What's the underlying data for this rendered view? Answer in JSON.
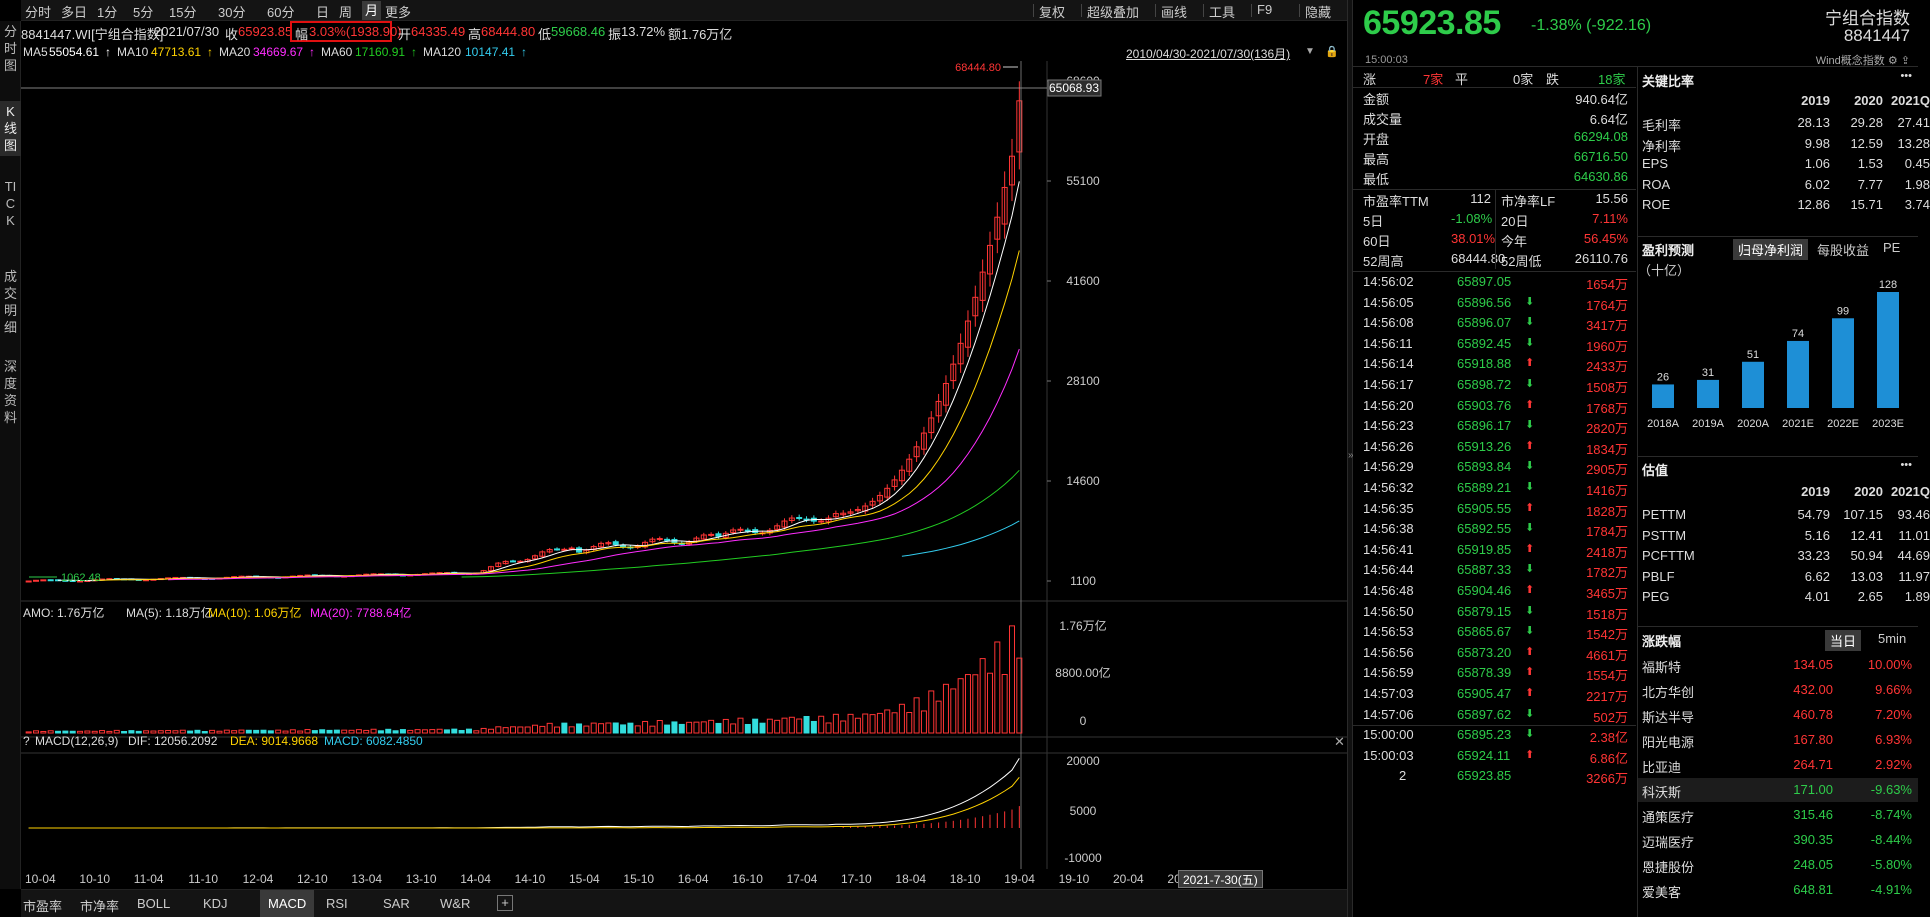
{
  "toolbar": {
    "periods": [
      "分时",
      "多日",
      "1分",
      "5分",
      "15分",
      "30分",
      "60分",
      "日",
      "周",
      "月",
      "更多"
    ],
    "active": "月",
    "right": [
      "复权",
      "超级叠加",
      "画线",
      "工具",
      "F9",
      "隐藏"
    ]
  },
  "left_tabs": [
    "分时图",
    "K线图",
    "TICK",
    "成交明细",
    "深度资料"
  ],
  "info": {
    "code": "8841447.WI[宁组合指数]",
    "date": "2021/07/30",
    "close_label": "收",
    "close": "65923.85",
    "range_label": "幅",
    "range": "3.03%(1938.90)",
    "open_label": "开",
    "open": "64335.49",
    "high_label": "高",
    "high": "68444.80",
    "low_label": "低",
    "low": "59668.46",
    "amp_label": "振",
    "amp": "13.72%",
    "amount_label": "额",
    "amount": "1.76万亿"
  },
  "ma": [
    {
      "label": "MA5",
      "value": "55054.61",
      "color": "#ffffff"
    },
    {
      "label": "MA10",
      "value": "47713.61",
      "color": "#ffd200"
    },
    {
      "label": "MA20",
      "value": "34669.67",
      "color": "#ff2dff"
    },
    {
      "label": "MA60",
      "value": "17160.91",
      "color": "#22cc22"
    },
    {
      "label": "MA120",
      "value": "10147.41",
      "color": "#33ccee"
    }
  ],
  "range_text": "2010/04/30-2021/07/30(136月)",
  "price_axis": {
    "ticks": [
      "68600",
      "55100",
      "41600",
      "28100",
      "14600",
      "1100"
    ],
    "cursor": "65068.93",
    "high_marker": "68444.80",
    "low_marker": "1062.48"
  },
  "volume": {
    "title": "AMO: 1.76万亿",
    "ma5": "MA(5): 1.18万亿",
    "ma10": "MA(10): 1.06万亿",
    "ma20": "MA(20): 7788.64亿",
    "ticks": [
      "1.76万亿",
      "8800.00亿",
      "0"
    ]
  },
  "macd": {
    "help": "?",
    "title": "MACD(12,26,9)",
    "dif": "DIF: 12056.2092",
    "dea": "DEA: 9014.9668",
    "macd": "MACD: 6082.4850",
    "ticks": [
      "20000",
      "5000",
      "-10000"
    ]
  },
  "dates": [
    "10-04",
    "10-10",
    "11-04",
    "11-10",
    "12-04",
    "12-10",
    "13-04",
    "13-10",
    "14-04",
    "14-10",
    "15-04",
    "15-10",
    "16-04",
    "16-10",
    "17-04",
    "17-10",
    "18-04",
    "18-10",
    "19-04",
    "19-10",
    "20-04",
    "20"
  ],
  "date_cursor": "2021-7-30(五)",
  "bottom_tabs": [
    "市盈率",
    "市净率",
    "BOLL",
    "KDJ",
    "MACD",
    "RSI",
    "SAR",
    "W&R",
    "+"
  ],
  "bottom_active": "MACD",
  "quote": {
    "price": "65923.85",
    "change": "-1.38% (-922.16)",
    "name": "宁组合指数",
    "code": "8841447",
    "time": "15:00:03",
    "wind": "Wind概念指数"
  },
  "stats": {
    "up_label": "涨",
    "up": "7家",
    "flat_label": "平",
    "flat": "0家",
    "down_label": "跌",
    "down": "18家",
    "rows": [
      {
        "k": "金额",
        "v": "940.64亿",
        "c": "white"
      },
      {
        "k": "成交量",
        "v": "6.64亿",
        "c": "white"
      },
      {
        "k": "开盘",
        "v": "66294.08",
        "c": "green"
      },
      {
        "k": "最高",
        "v": "66716.50",
        "c": "green"
      },
      {
        "k": "最低",
        "v": "64630.86",
        "c": "green"
      }
    ],
    "pe_label": "市盈率TTM",
    "pe": "112",
    "pb_label": "市净率LF",
    "pb": "15.56",
    "r5_label": "5日",
    "r5": "-1.08%",
    "r20_label": "20日",
    "r20": "7.11%",
    "r60_label": "60日",
    "r60": "38.01%",
    "ytd_label": "今年",
    "ytd": "56.45%",
    "h52_label": "52周高",
    "h52": "68444.80",
    "l52_label": "52周低",
    "l52": "26110.76"
  },
  "ticks": [
    {
      "t": "14:56:02",
      "p": "65897.05",
      "d": "",
      "v": "1654万",
      "vc": "red"
    },
    {
      "t": "14:56:05",
      "p": "65896.56",
      "d": "down",
      "v": "1764万",
      "vc": "red"
    },
    {
      "t": "14:56:08",
      "p": "65896.07",
      "d": "down",
      "v": "3417万",
      "vc": "red"
    },
    {
      "t": "14:56:11",
      "p": "65892.45",
      "d": "down",
      "v": "1960万",
      "vc": "red"
    },
    {
      "t": "14:56:14",
      "p": "65918.88",
      "d": "up",
      "v": "2433万",
      "vc": "red"
    },
    {
      "t": "14:56:17",
      "p": "65898.72",
      "d": "down",
      "v": "1508万",
      "vc": "red"
    },
    {
      "t": "14:56:20",
      "p": "65903.76",
      "d": "up",
      "v": "1768万",
      "vc": "red"
    },
    {
      "t": "14:56:23",
      "p": "65896.17",
      "d": "down",
      "v": "2820万",
      "vc": "red"
    },
    {
      "t": "14:56:26",
      "p": "65913.26",
      "d": "up",
      "v": "1834万",
      "vc": "red"
    },
    {
      "t": "14:56:29",
      "p": "65893.84",
      "d": "down",
      "v": "2905万",
      "vc": "red"
    },
    {
      "t": "14:56:32",
      "p": "65889.21",
      "d": "down",
      "v": "1416万",
      "vc": "red"
    },
    {
      "t": "14:56:35",
      "p": "65905.55",
      "d": "up",
      "v": "1828万",
      "vc": "red"
    },
    {
      "t": "14:56:38",
      "p": "65892.55",
      "d": "down",
      "v": "1784万",
      "vc": "red"
    },
    {
      "t": "14:56:41",
      "p": "65919.85",
      "d": "up",
      "v": "2418万",
      "vc": "red"
    },
    {
      "t": "14:56:44",
      "p": "65887.33",
      "d": "down",
      "v": "1782万",
      "vc": "red"
    },
    {
      "t": "14:56:48",
      "p": "65904.46",
      "d": "up",
      "v": "3465万",
      "vc": "red"
    },
    {
      "t": "14:56:50",
      "p": "65879.15",
      "d": "down",
      "v": "1518万",
      "vc": "red"
    },
    {
      "t": "14:56:53",
      "p": "65865.67",
      "d": "down",
      "v": "1542万",
      "vc": "red"
    },
    {
      "t": "14:56:56",
      "p": "65873.20",
      "d": "up",
      "v": "4661万",
      "vc": "red"
    },
    {
      "t": "14:56:59",
      "p": "65878.39",
      "d": "up",
      "v": "1554万",
      "vc": "red"
    },
    {
      "t": "14:57:03",
      "p": "65905.47",
      "d": "up",
      "v": "2217万",
      "vc": "red"
    },
    {
      "t": "14:57:06",
      "p": "65897.62",
      "d": "down",
      "v": "502万",
      "vc": "red"
    },
    {
      "t": "15:00:00",
      "p": "65895.23",
      "d": "down",
      "v": "2.38亿",
      "vc": "red"
    },
    {
      "t": "15:00:03",
      "p": "65924.11",
      "d": "up",
      "v": "6.86亿",
      "vc": "red"
    },
    {
      "t": "2",
      "p": "65923.85",
      "d": "",
      "v": "3266万",
      "vc": "red"
    }
  ],
  "ratios": {
    "title": "关键比率",
    "more": "•••",
    "years": [
      "2019",
      "2020",
      "2021Q"
    ],
    "rows": [
      {
        "k": "毛利率",
        "v": [
          "28.13",
          "29.28",
          "27.41"
        ]
      },
      {
        "k": "净利率",
        "v": [
          "9.98",
          "12.59",
          "13.28"
        ]
      },
      {
        "k": "EPS",
        "v": [
          "1.06",
          "1.53",
          "0.45"
        ]
      },
      {
        "k": "ROA",
        "v": [
          "6.02",
          "7.77",
          "1.98"
        ]
      },
      {
        "k": "ROE",
        "v": [
          "12.86",
          "15.71",
          "3.74"
        ]
      }
    ]
  },
  "forecast": {
    "title": "盈利预测",
    "tabs": [
      "归母净利润",
      "每股收益",
      "PE"
    ],
    "active": "归母净利润",
    "unit": "（十亿）",
    "chart_data": {
      "type": "bar",
      "categories": [
        "2018A",
        "2019A",
        "2020A",
        "2021E",
        "2022E",
        "2023E"
      ],
      "values": [
        26,
        31,
        51,
        74,
        99,
        128
      ],
      "ylim": [
        0,
        128
      ]
    }
  },
  "valuation": {
    "title": "估值",
    "more": "•••",
    "years": [
      "2019",
      "2020",
      "2021Q"
    ],
    "rows": [
      {
        "k": "PETTM",
        "v": [
          "54.79",
          "107.15",
          "93.46"
        ]
      },
      {
        "k": "PSTTM",
        "v": [
          "5.16",
          "12.41",
          "11.01"
        ]
      },
      {
        "k": "PCFTTM",
        "v": [
          "33.23",
          "50.94",
          "44.69"
        ]
      },
      {
        "k": "PBLF",
        "v": [
          "6.62",
          "13.03",
          "11.97"
        ]
      },
      {
        "k": "PEG",
        "v": [
          "4.01",
          "2.65",
          "1.89"
        ]
      }
    ]
  },
  "movers": {
    "title": "涨跌幅",
    "tabs": [
      "当日",
      "5min"
    ],
    "active": "当日",
    "rows": [
      {
        "n": "福斯特",
        "p": "134.05",
        "c": "10.00%",
        "col": "red"
      },
      {
        "n": "北方华创",
        "p": "432.00",
        "c": "9.66%",
        "col": "red"
      },
      {
        "n": "斯达半导",
        "p": "460.78",
        "c": "7.20%",
        "col": "red"
      },
      {
        "n": "阳光电源",
        "p": "167.80",
        "c": "6.93%",
        "col": "red"
      },
      {
        "n": "比亚迪",
        "p": "264.71",
        "c": "2.92%",
        "col": "red"
      },
      {
        "n": "科沃斯",
        "p": "171.00",
        "c": "-9.63%",
        "col": "green"
      },
      {
        "n": "通策医疗",
        "p": "315.46",
        "c": "-8.74%",
        "col": "green"
      },
      {
        "n": "迈瑞医疗",
        "p": "390.35",
        "c": "-8.44%",
        "col": "green"
      },
      {
        "n": "恩捷股份",
        "p": "248.05",
        "c": "-5.80%",
        "col": "green"
      },
      {
        "n": "爱美客",
        "p": "648.81",
        "c": "-4.91%",
        "col": "green"
      }
    ]
  }
}
